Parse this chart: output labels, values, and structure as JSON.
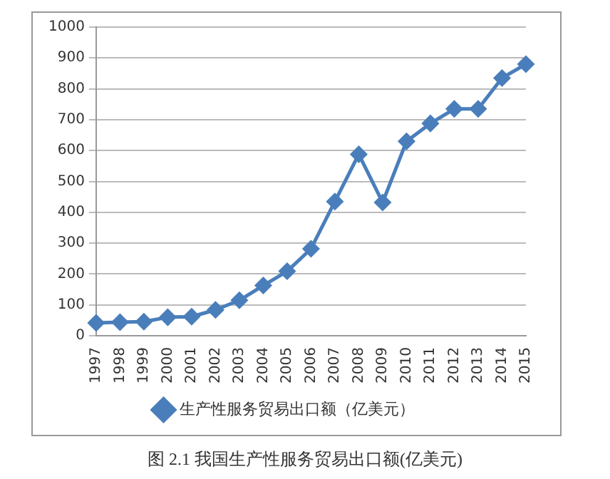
{
  "chart_data": {
    "type": "line",
    "categories": [
      "1997",
      "1998",
      "1999",
      "2000",
      "2001",
      "2002",
      "2003",
      "2004",
      "2005",
      "2006",
      "2007",
      "2008",
      "2009",
      "2010",
      "2011",
      "2012",
      "2013",
      "2014",
      "2015"
    ],
    "series": [
      {
        "name": "生产性服务贸易出口额（亿美元）",
        "color": "#4a7ebb",
        "values": [
          42,
          44,
          46,
          60,
          62,
          84,
          115,
          163,
          209,
          282,
          435,
          588,
          432,
          630,
          688,
          735,
          735,
          835,
          880
        ]
      }
    ],
    "ylim": [
      0,
      1000
    ],
    "yticks": [
      0,
      100,
      200,
      300,
      400,
      500,
      600,
      700,
      800,
      900,
      1000
    ],
    "grid": "y",
    "legend": "bottom",
    "marker": "diamond",
    "line_style": "solid",
    "annotations": [
      "图 2.1 我国生产性服务贸易出口额(亿美元)"
    ]
  }
}
